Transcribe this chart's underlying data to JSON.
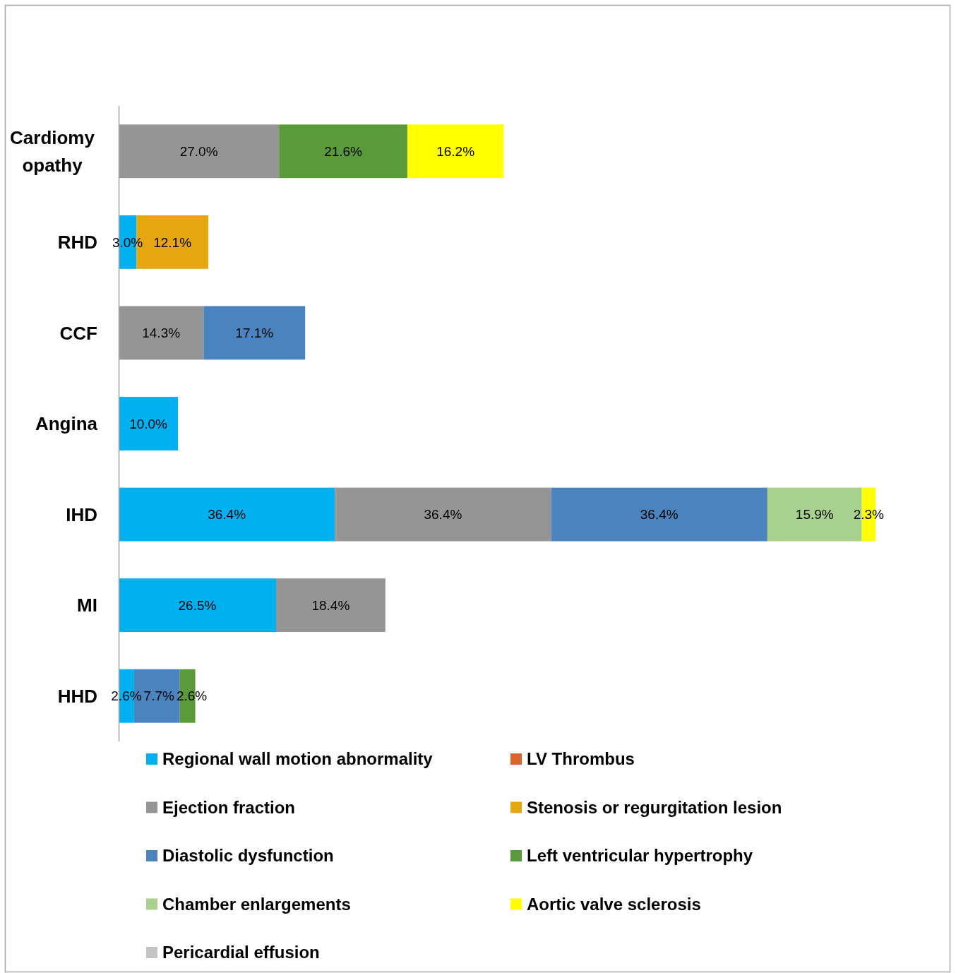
{
  "chart_data": {
    "type": "bar",
    "orientation": "horizontal",
    "stacked": true,
    "categories": [
      "Cardiomyopathy",
      "RHD",
      "CCF",
      "Angina",
      "IHD",
      "MI",
      "HHD"
    ],
    "series": [
      {
        "name": "Regional wall motion abnormality",
        "color": "#00b0f0",
        "values": [
          null,
          3.0,
          null,
          10.0,
          36.4,
          26.5,
          2.6
        ],
        "value_labels": [
          null,
          "3.0%",
          null,
          "10.0%",
          "36.4%",
          "26.5%",
          "2.6%"
        ]
      },
      {
        "name": "LV Thrombus",
        "color": "#d9662b",
        "values": [
          null,
          null,
          null,
          null,
          null,
          null,
          null
        ]
      },
      {
        "name": "Ejection fraction",
        "color": "#959595",
        "values": [
          27.0,
          null,
          14.3,
          null,
          36.4,
          18.4,
          null
        ],
        "value_labels": [
          "27.0%",
          null,
          "14.3%",
          null,
          "36.4%",
          "18.4%",
          null
        ]
      },
      {
        "name": "Stenosis or regurgitation lesion",
        "color": "#e6a60f",
        "values": [
          null,
          12.1,
          null,
          null,
          null,
          null,
          null
        ],
        "value_labels": [
          null,
          "12.1%",
          null,
          null,
          null,
          null,
          null
        ]
      },
      {
        "name": "Diastolic dysfunction",
        "color": "#4a83be",
        "values": [
          null,
          null,
          17.1,
          null,
          36.4,
          null,
          7.7
        ],
        "value_labels": [
          null,
          null,
          "17.1%",
          null,
          "36.4%",
          null,
          "7.7%"
        ]
      },
      {
        "name": "Left ventricular hypertrophy",
        "color": "#5a9a3a",
        "values": [
          21.6,
          null,
          null,
          null,
          null,
          null,
          2.6
        ],
        "value_labels": [
          "21.6%",
          null,
          null,
          null,
          null,
          null,
          "2.6%"
        ]
      },
      {
        "name": "Chamber enlargements",
        "color": "#a9d18e",
        "values": [
          null,
          null,
          null,
          null,
          15.9,
          null,
          null
        ],
        "value_labels": [
          null,
          null,
          null,
          null,
          "15.9%",
          null,
          null
        ]
      },
      {
        "name": "Aortic valve sclerosis",
        "color": "#ffff00",
        "values": [
          16.2,
          null,
          null,
          null,
          2.3,
          null,
          null
        ],
        "value_labels": [
          "16.2%",
          null,
          null,
          null,
          "2.3%",
          null,
          null
        ]
      },
      {
        "name": "Pericardial effusion",
        "color": "#c4c4c4",
        "values": [
          null,
          null,
          null,
          null,
          null,
          null,
          null
        ]
      }
    ],
    "legend": "bottom",
    "tick_labels": "y"
  }
}
